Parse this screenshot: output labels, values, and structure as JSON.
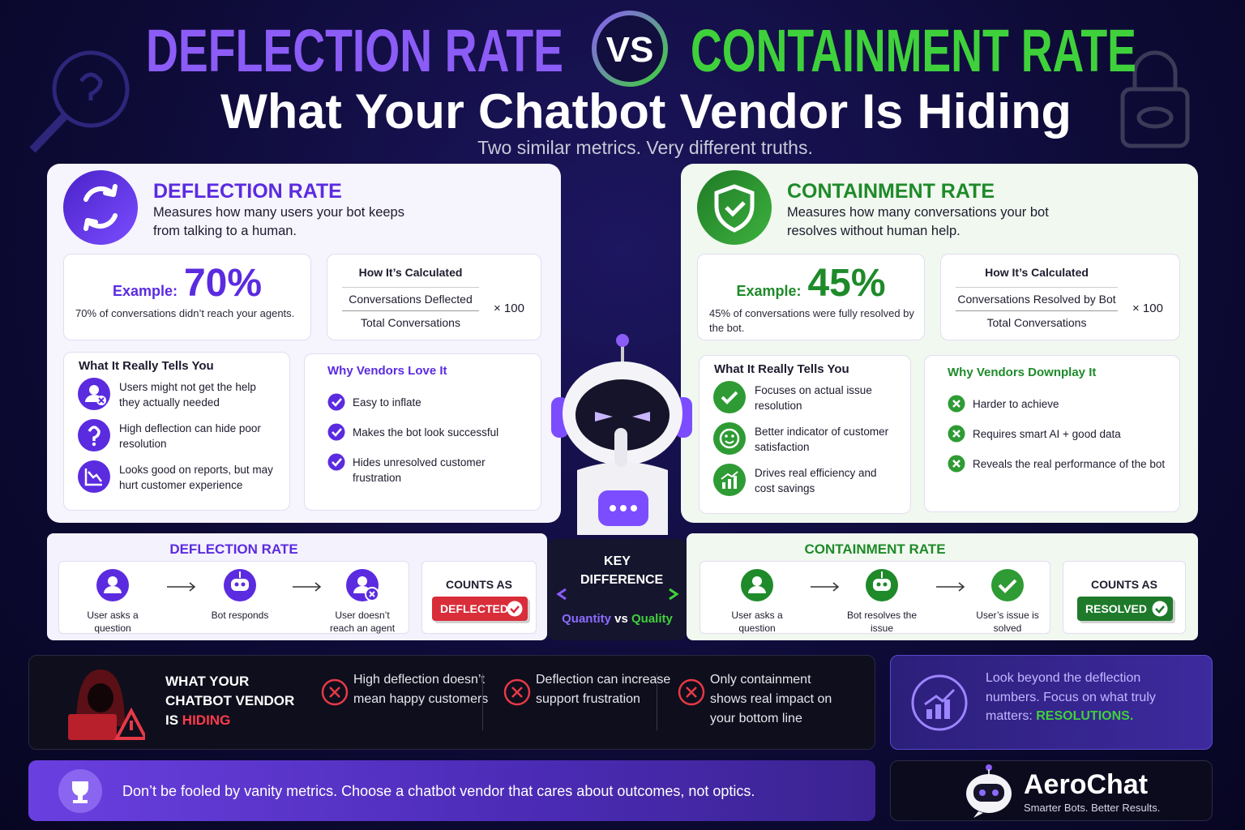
{
  "header": {
    "title_left": "DEFLECTION RATE",
    "vs": "VS",
    "title_right": "CONTAINMENT RATE",
    "subtitle": "What Your Chatbot Vendor Is Hiding",
    "tagline": "Two similar metrics. Very different truths."
  },
  "deflection": {
    "heading": "DEFLECTION RATE",
    "description": "Measures how many users your bot keeps from talking to a human.",
    "example_label": "Example:",
    "example_value": "70%",
    "example_note": "70% of conversations didn’t reach your agents.",
    "calc_title": "How It’s Calculated",
    "numerator": "Conversations Deflected",
    "denominator": "Total Conversations",
    "multiplier": "× 100",
    "tells_title": "What It Really Tells You",
    "tells": [
      "Users might not get the help they actually needed",
      "High deflection can hide poor resolution",
      "Looks good on reports, but may hurt customer experience"
    ],
    "vendors_title": "Why Vendors Love It",
    "vendors": [
      "Easy to inflate",
      "Makes the bot look successful",
      "Hides unresolved customer frustration"
    ]
  },
  "containment": {
    "heading": "CONTAINMENT RATE",
    "description": "Measures how many conversations your bot resolves without human help.",
    "example_label": "Example:",
    "example_value": "45%",
    "example_note": "45% of conversations were fully resolved by the bot.",
    "calc_title": "How It’s Calculated",
    "numerator": "Conversations Resolved by Bot",
    "denominator": "Total Conversations",
    "multiplier": "× 100",
    "tells_title": "What It Really Tells You",
    "tells": [
      "Focuses on actual issue resolution",
      "Better indicator of customer satisfaction",
      "Drives real efficiency and cost savings"
    ],
    "vendors_title": "Why Vendors Downplay It",
    "vendors": [
      "Harder to achieve",
      "Requires smart AI + good data",
      "Reveals the real performance of the bot"
    ]
  },
  "flows": [
    {
      "title": "DEFLECTION RATE",
      "steps": [
        "User asks a question",
        "Bot responds",
        "User doesn’t reach an agent"
      ],
      "counts_as": "COUNTS AS",
      "badge": "DEFLECTED"
    },
    {
      "title": "CONTAINMENT RATE",
      "steps": [
        "User asks a question",
        "Bot resolves the issue",
        "User’s issue is solved"
      ],
      "counts_as": "COUNTS AS",
      "badge": "RESOLVED"
    }
  ],
  "key_difference": {
    "title": "KEY DIFFERENCE",
    "left": "Quantity",
    "vs": "vs",
    "right": "Quality"
  },
  "hiding": {
    "title": "WHAT YOUR CHATBOT VENDOR IS",
    "highlight": "HIDING",
    "points": [
      "High deflection doesn’t mean happy customers",
      "Deflection can increase support frustration",
      "Only containment shows real impact on your bottom line"
    ]
  },
  "tip": {
    "text": "Look beyond the deflection numbers. Focus on what truly matters:",
    "highlight": "RESOLUTIONS."
  },
  "footer": {
    "message": "Don’t be fooled by vanity metrics. Choose a chatbot vendor that cares about outcomes, not optics.",
    "brand": "AeroChat",
    "slogan": "Smarter Bots. Better Results."
  }
}
